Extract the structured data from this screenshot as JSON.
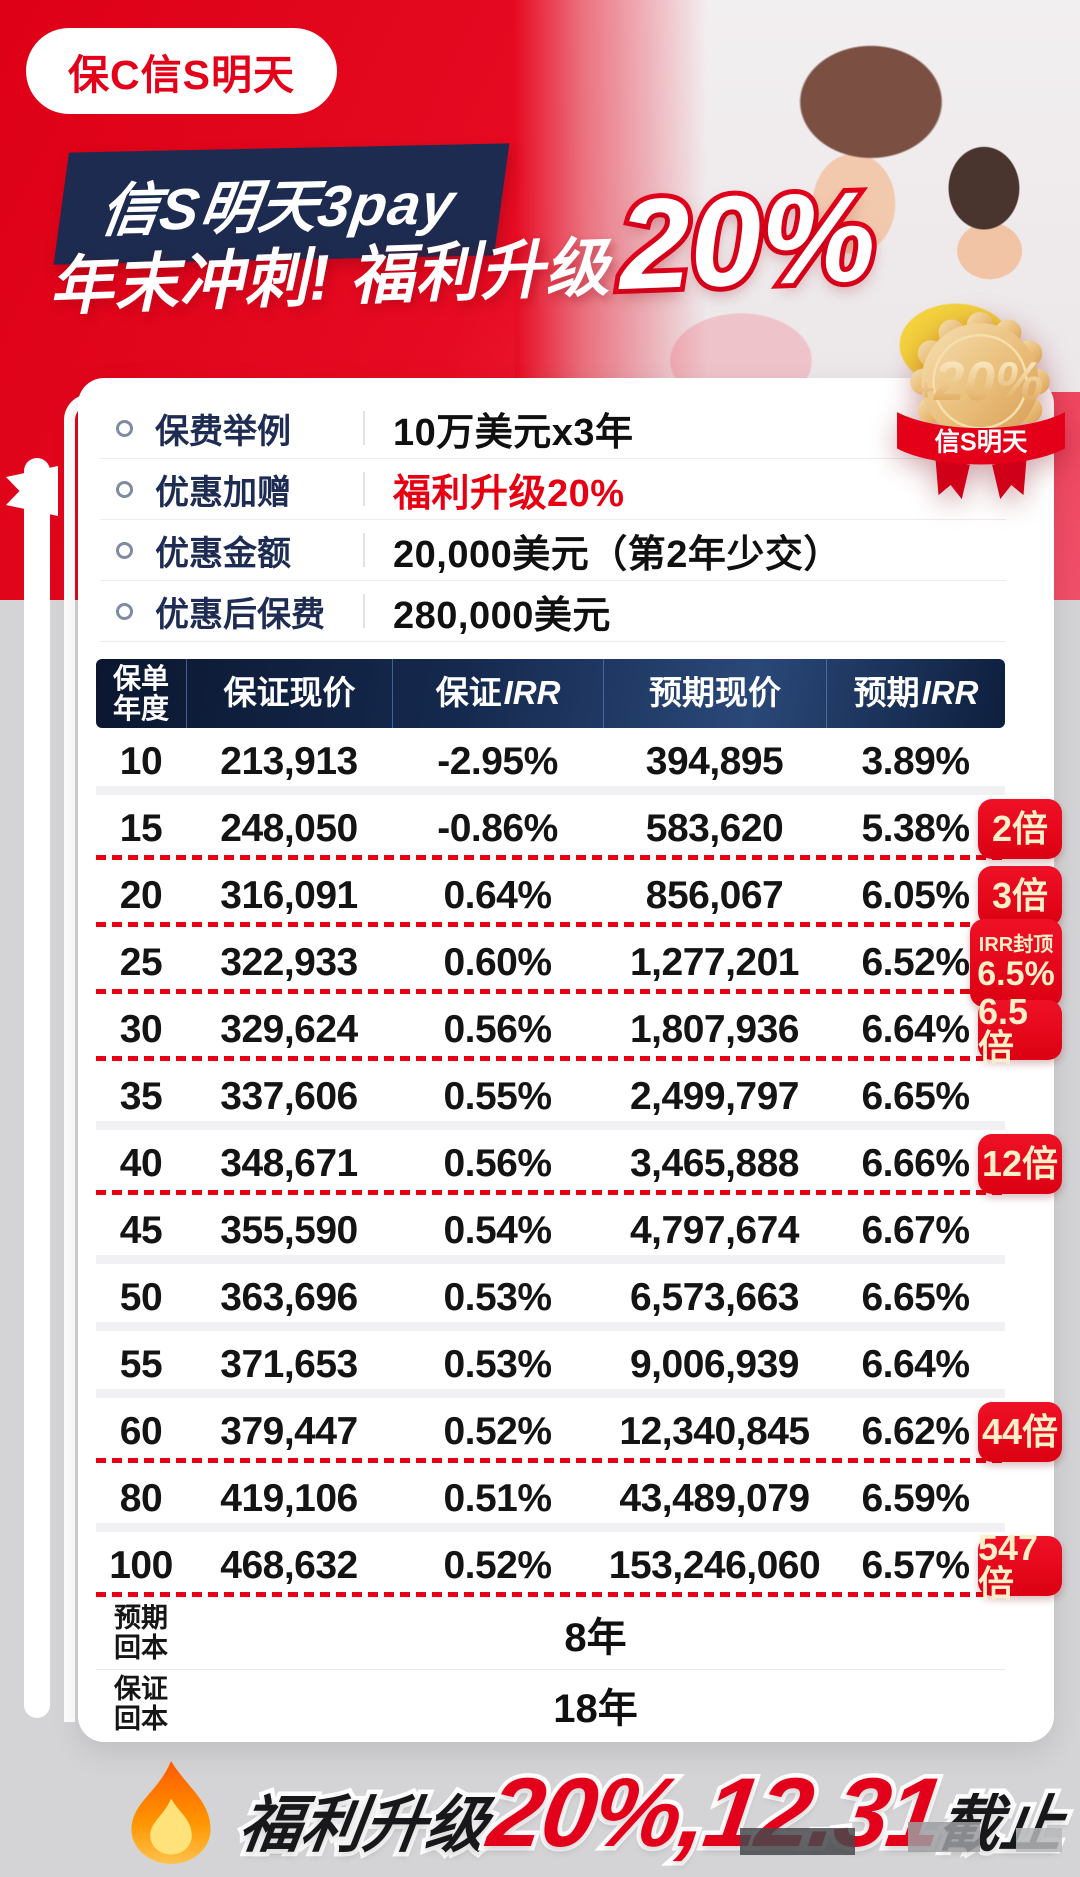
{
  "brand": {
    "logo": "保C信S明天"
  },
  "hero": {
    "product_banner": "信S明天3pay",
    "title_prefix": "年末冲刺! 福利升级",
    "title_highlight": "20%"
  },
  "medal": {
    "plus": "+",
    "percent": "20%",
    "ribbon": "信S明天"
  },
  "summary": {
    "rows": [
      {
        "label": "保费举例",
        "value": "10万美元x3年"
      },
      {
        "label": "优惠加赠",
        "value": "福利升级20%"
      },
      {
        "label": "优惠金额",
        "value": "20,000美元（第2年少交）"
      },
      {
        "label": "优惠后保费",
        "value": "280,000美元"
      }
    ]
  },
  "table": {
    "columns": [
      {
        "line1": "保单",
        "line2": "年度"
      },
      {
        "text": "保证现价"
      },
      {
        "text": "保证",
        "suffix": "IRR"
      },
      {
        "text": "预期现价"
      },
      {
        "text": "预期",
        "suffix": "IRR"
      }
    ],
    "rows": [
      {
        "year": "10",
        "guaranteed_value": "213,913",
        "guaranteed_irr": "-2.95%",
        "expected_value": "394,895",
        "expected_irr": "3.89%"
      },
      {
        "year": "15",
        "guaranteed_value": "248,050",
        "guaranteed_irr": "-0.86%",
        "expected_value": "583,620",
        "expected_irr": "5.38%",
        "dashed_after": true,
        "badge": {
          "text": "2倍"
        }
      },
      {
        "year": "20",
        "guaranteed_value": "316,091",
        "guaranteed_irr": "0.64%",
        "expected_value": "856,067",
        "expected_irr": "6.05%",
        "dashed_after": true,
        "badge": {
          "text": "3倍"
        }
      },
      {
        "year": "25",
        "guaranteed_value": "322,933",
        "guaranteed_irr": "0.60%",
        "expected_value": "1,277,201",
        "expected_irr": "6.52%",
        "dashed_after": true,
        "badge": {
          "top_text": "IRR封顶",
          "text": "6.5%"
        }
      },
      {
        "year": "30",
        "guaranteed_value": "329,624",
        "guaranteed_irr": "0.56%",
        "expected_value": "1,807,936",
        "expected_irr": "6.64%",
        "dashed_after": true,
        "badge": {
          "text": "6.5倍"
        }
      },
      {
        "year": "35",
        "guaranteed_value": "337,606",
        "guaranteed_irr": "0.55%",
        "expected_value": "2,499,797",
        "expected_irr": "6.65%"
      },
      {
        "year": "40",
        "guaranteed_value": "348,671",
        "guaranteed_irr": "0.56%",
        "expected_value": "3,465,888",
        "expected_irr": "6.66%",
        "dashed_after": true,
        "badge": {
          "text": "12倍"
        }
      },
      {
        "year": "45",
        "guaranteed_value": "355,590",
        "guaranteed_irr": "0.54%",
        "expected_value": "4,797,674",
        "expected_irr": "6.67%"
      },
      {
        "year": "50",
        "guaranteed_value": "363,696",
        "guaranteed_irr": "0.53%",
        "expected_value": "6,573,663",
        "expected_irr": "6.65%"
      },
      {
        "year": "55",
        "guaranteed_value": "371,653",
        "guaranteed_irr": "0.53%",
        "expected_value": "9,006,939",
        "expected_irr": "6.64%"
      },
      {
        "year": "60",
        "guaranteed_value": "379,447",
        "guaranteed_irr": "0.52%",
        "expected_value": "12,340,845",
        "expected_irr": "6.62%",
        "dashed_after": true,
        "badge": {
          "text": "44倍"
        }
      },
      {
        "year": "80",
        "guaranteed_value": "419,106",
        "guaranteed_irr": "0.51%",
        "expected_value": "43,489,079",
        "expected_irr": "6.59%"
      },
      {
        "year": "100",
        "guaranteed_value": "468,632",
        "guaranteed_irr": "0.52%",
        "expected_value": "153,246,060",
        "expected_irr": "6.57%",
        "dashed_after": true,
        "badge": {
          "text": "547倍"
        }
      }
    ],
    "footer": [
      {
        "label_lines": [
          "预期",
          "回本"
        ],
        "value": "8年"
      },
      {
        "label_lines": [
          "保证",
          "回本"
        ],
        "value": "18年"
      }
    ]
  },
  "footer_banner": {
    "segments": [
      {
        "text": "福利升级",
        "color": "black"
      },
      {
        "text": "20%,12.31",
        "color": "red"
      },
      {
        "text": "截止",
        "color": "black"
      }
    ]
  },
  "colors": {
    "accent_red": "#e60012",
    "navy": "#1c2b4f",
    "badge_text": "#ffefc9",
    "page_gray": "#d4d4d6",
    "gold": "#e8bc72"
  },
  "chart_data": {
    "type": "table",
    "title": "信S明天3pay 年末冲刺 福利升级20%",
    "columns": [
      "保单年度",
      "保证现价",
      "保证IRR",
      "预期现价",
      "预期IRR"
    ],
    "rows": [
      [
        "10",
        "213,913",
        "-2.95%",
        "394,895",
        "3.89%"
      ],
      [
        "15",
        "248,050",
        "-0.86%",
        "583,620",
        "5.38%"
      ],
      [
        "20",
        "316,091",
        "0.64%",
        "856,067",
        "6.05%"
      ],
      [
        "25",
        "322,933",
        "0.60%",
        "1,277,201",
        "6.52%"
      ],
      [
        "30",
        "329,624",
        "0.56%",
        "1,807,936",
        "6.64%"
      ],
      [
        "35",
        "337,606",
        "0.55%",
        "2,499,797",
        "6.65%"
      ],
      [
        "40",
        "348,671",
        "0.56%",
        "3,465,888",
        "6.66%"
      ],
      [
        "45",
        "355,590",
        "0.54%",
        "4,797,674",
        "6.67%"
      ],
      [
        "50",
        "363,696",
        "0.53%",
        "6,573,663",
        "6.65%"
      ],
      [
        "55",
        "371,653",
        "0.53%",
        "9,006,939",
        "6.64%"
      ],
      [
        "60",
        "379,447",
        "0.52%",
        "12,340,845",
        "6.62%"
      ],
      [
        "80",
        "419,106",
        "0.51%",
        "43,489,079",
        "6.59%"
      ],
      [
        "100",
        "468,632",
        "0.52%",
        "153,246,060",
        "6.57%"
      ]
    ],
    "annotations": [
      "2倍@15",
      "3倍@20",
      "IRR封顶6.5%@25",
      "6.5倍@30",
      "12倍@40",
      "44倍@60",
      "547倍@100",
      "预期回本 8年",
      "保证回本 18年"
    ]
  }
}
